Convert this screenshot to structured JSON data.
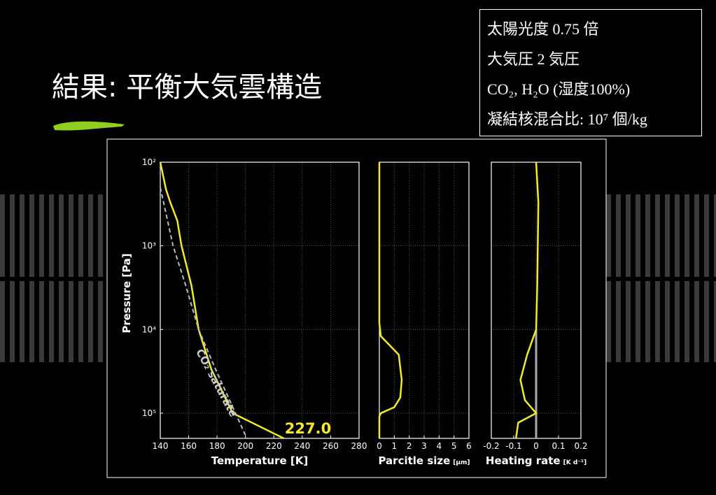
{
  "slide": {
    "title": "結果: 平衡大気雲構造",
    "conditions": [
      "太陽光度  0.75 倍",
      "大気圧 2 気圧",
      "CO₂, H₂O (湿度100%)",
      "凝結核混合比: 10⁷ 個/kg"
    ]
  },
  "chart_data": [
    {
      "type": "line",
      "x_label": "Temperature [K]",
      "y_label": "Pressure [Pa]",
      "xlim": [
        140,
        280
      ],
      "xticks": [
        140,
        160,
        180,
        200,
        220,
        240,
        260,
        280
      ],
      "ylim": [
        200000,
        100
      ],
      "log_y": true,
      "yticks": [
        {
          "value": 100,
          "label": "10²"
        },
        {
          "value": 1000,
          "label": "10³"
        },
        {
          "value": 10000,
          "label": "10⁴"
        },
        {
          "value": 100000,
          "label": "10⁵"
        }
      ],
      "grid": true,
      "annotations": [
        "227.0",
        "CO₂ saturate"
      ],
      "series": [
        {
          "color": "#f2ea2a",
          "dash": false,
          "x": [
            140,
            144,
            147,
            152,
            155,
            162,
            167,
            176,
            191,
            227
          ],
          "values": [
            100,
            210,
            300,
            500,
            1000,
            3000,
            10000,
            30000,
            100000,
            200000
          ]
        },
        {
          "color": "#bbbbbb",
          "dash": true,
          "x": [
            140,
            149,
            158,
            167,
            179,
            193,
            201
          ],
          "values": [
            200,
            1000,
            3000,
            10000,
            30000,
            100000,
            200000
          ]
        }
      ]
    },
    {
      "type": "line",
      "x_label": "Parcitle size",
      "x_unit": "[μm]",
      "xlim": [
        0,
        6
      ],
      "xticks": [
        0,
        1,
        2,
        3,
        4,
        5,
        6
      ],
      "ylim": [
        200000,
        100
      ],
      "log_y": true,
      "grid": true,
      "series": [
        {
          "color": "#f2ea2a",
          "dash": false,
          "x": [
            0,
            0,
            0.1,
            1.3,
            1.5,
            1.4,
            1,
            0.1,
            0,
            0
          ],
          "values": [
            100,
            8300,
            12000,
            20000,
            40000,
            65000,
            85000,
            100000,
            110000,
            200000
          ]
        }
      ]
    },
    {
      "type": "line",
      "x_label": "Heating rate",
      "x_unit": "[K d⁻¹]",
      "xlim": [
        -0.2,
        0.2
      ],
      "xticks": [
        -0.2,
        -0.1,
        0,
        0.1,
        0.2
      ],
      "ylim": [
        200000,
        100
      ],
      "log_y": true,
      "grid": true,
      "series": [
        {
          "color": "#f2ea2a",
          "dash": false,
          "x": [
            0,
            0.01,
            0.005,
            0,
            -0.04,
            -0.07,
            -0.05,
            0,
            -0.08,
            -0.09
          ],
          "values": [
            100,
            300,
            3000,
            10000,
            20000,
            40000,
            70000,
            100000,
            130000,
            200000
          ]
        }
      ]
    }
  ]
}
